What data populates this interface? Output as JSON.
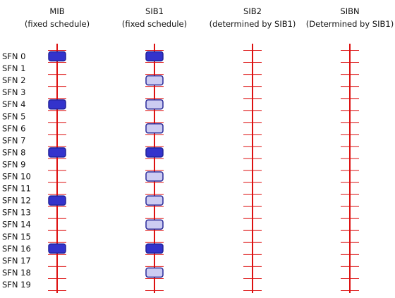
{
  "columns": [
    {
      "id": "mib",
      "title": "MIB",
      "subtitle": "(fixed schedule)"
    },
    {
      "id": "sib1",
      "title": "SIB1",
      "subtitle": "(fixed schedule)"
    },
    {
      "id": "sib2",
      "title": "SIB2",
      "subtitle": "(determined by SIB1)"
    },
    {
      "id": "sibn",
      "title": "SIBN",
      "subtitle": "(Determined by SIB1)"
    }
  ],
  "frames": [
    "SFN 0",
    "SFN 1",
    "SFN 2",
    "SFN 3",
    "SFN 4",
    "SFN 5",
    "SFN 6",
    "SFN 7",
    "SFN 8",
    "SFN 9",
    "SFN 10",
    "SFN 11",
    "SFN 12",
    "SFN 13",
    "SFN 14",
    "SFN 15",
    "SFN 16",
    "SFN 17",
    "SFN 18",
    "SFN 19"
  ],
  "transmissions": {
    "mib": [
      {
        "sfn": 0,
        "kind": "new"
      },
      {
        "sfn": 4,
        "kind": "new"
      },
      {
        "sfn": 8,
        "kind": "new"
      },
      {
        "sfn": 12,
        "kind": "new"
      },
      {
        "sfn": 16,
        "kind": "new"
      }
    ],
    "sib1": [
      {
        "sfn": 0,
        "kind": "new"
      },
      {
        "sfn": 2,
        "kind": "repetition"
      },
      {
        "sfn": 4,
        "kind": "repetition"
      },
      {
        "sfn": 6,
        "kind": "repetition"
      },
      {
        "sfn": 8,
        "kind": "new"
      },
      {
        "sfn": 10,
        "kind": "repetition"
      },
      {
        "sfn": 12,
        "kind": "repetition"
      },
      {
        "sfn": 14,
        "kind": "repetition"
      },
      {
        "sfn": 16,
        "kind": "new"
      },
      {
        "sfn": 18,
        "kind": "repetition"
      }
    ],
    "sib2": [],
    "sibn": []
  },
  "colors": {
    "timeline": "#dd1111",
    "new_fill": "#3333cc",
    "new_stroke": "#222299",
    "repetition_fill": "#ccccf2",
    "repetition_stroke": "#2a2a99",
    "text": "#111111"
  }
}
